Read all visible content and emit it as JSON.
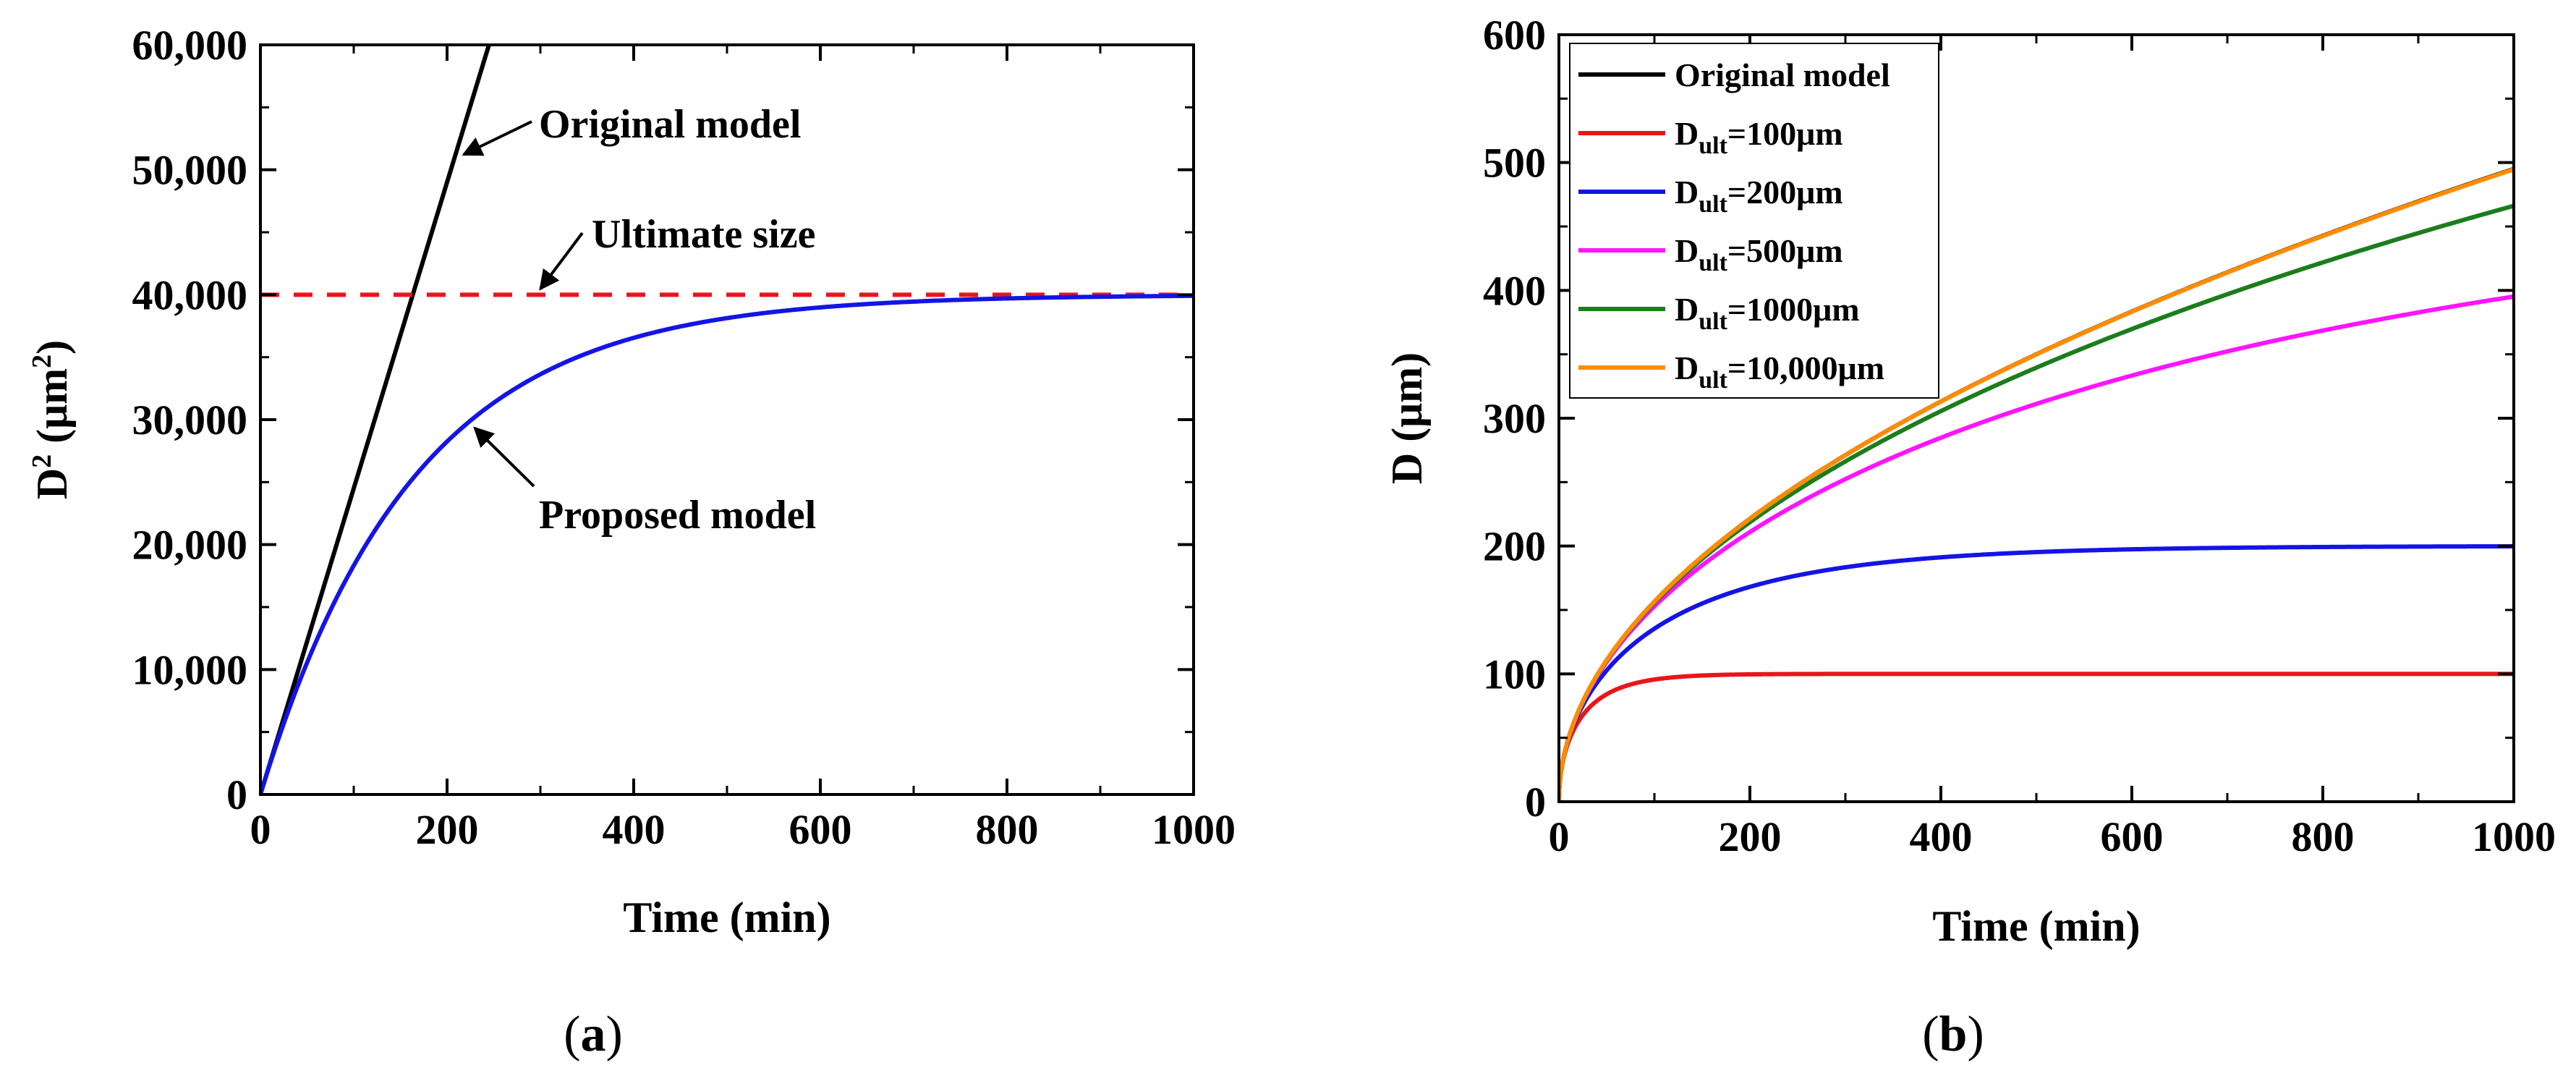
{
  "chart_data": [
    {
      "type": "line",
      "panel_label": "(a)",
      "panel_letter": "a",
      "xlabel": "Time (min)",
      "ylabel": {
        "base": "D",
        "sup1": "2",
        "mid": " (μm",
        "sup2": "2",
        "end": ")"
      },
      "xlim": [
        0,
        1000
      ],
      "ylim": [
        0,
        60000
      ],
      "x_ticks": [
        0,
        200,
        400,
        600,
        800,
        1000
      ],
      "x_tick_labels": [
        "0",
        "200",
        "400",
        "600",
        "800",
        "1000"
      ],
      "y_ticks": [
        0,
        10000,
        20000,
        30000,
        40000,
        50000,
        60000
      ],
      "y_tick_labels": [
        "0",
        "10,000",
        "20,000",
        "30,000",
        "40,000",
        "50,000",
        "60,000"
      ],
      "series": [
        {
          "name": "Original model",
          "color": "#000000",
          "style": "solid",
          "formula": "linear",
          "k": 245,
          "x_end": 245
        },
        {
          "name": "Ultimate size",
          "color": "#e8161b",
          "style": "dashed",
          "formula": "constant",
          "value": 40000
        },
        {
          "name": "Proposed model",
          "color": "#1414e6",
          "style": "solid",
          "formula": "saturating_d2",
          "ultimate": 40000,
          "k": 245
        }
      ],
      "annotations": [
        {
          "text": "Original model",
          "target_series": "Original model"
        },
        {
          "text": "Ultimate size",
          "target_series": "Ultimate size"
        },
        {
          "text": "Proposed model",
          "target_series": "Proposed model"
        }
      ]
    },
    {
      "type": "line",
      "panel_label": "(b)",
      "panel_letter": "b",
      "xlabel": "Time (min)",
      "ylabel": "D (μm)",
      "xlim": [
        0,
        1000
      ],
      "ylim": [
        0,
        600
      ],
      "x_ticks": [
        0,
        200,
        400,
        600,
        800,
        1000
      ],
      "x_tick_labels": [
        "0",
        "200",
        "400",
        "600",
        "800",
        "1000"
      ],
      "y_ticks": [
        0,
        100,
        200,
        300,
        400,
        500,
        600
      ],
      "y_tick_labels": [
        "0",
        "100",
        "200",
        "300",
        "400",
        "500",
        "600"
      ],
      "legend_position": "top-left",
      "series": [
        {
          "name": "Original model",
          "legend_main": "Original model",
          "color": "#000000",
          "formula": "sqrt",
          "k": 245
        },
        {
          "name": "Dult=100μm",
          "legend_main": "D",
          "legend_sub": "ult",
          "legend_rest": "=100μm",
          "color": "#e8161b",
          "formula": "saturating_d",
          "ultimate": 100,
          "k": 245
        },
        {
          "name": "Dult=200μm",
          "legend_main": "D",
          "legend_sub": "ult",
          "legend_rest": "=200μm",
          "color": "#1414e6",
          "formula": "saturating_d",
          "ultimate": 200,
          "k": 245
        },
        {
          "name": "Dult=500μm",
          "legend_main": "D",
          "legend_sub": "ult",
          "legend_rest": "=500μm",
          "color": "#ff14ff",
          "formula": "saturating_d",
          "ultimate": 500,
          "k": 245
        },
        {
          "name": "Dult=1000μm",
          "legend_main": "D",
          "legend_sub": "ult",
          "legend_rest": "=1000μm",
          "color": "#1b7d1b",
          "formula": "saturating_d",
          "ultimate": 1000,
          "k": 245
        },
        {
          "name": "Dult=10,000μm",
          "legend_main": "D",
          "legend_sub": "ult",
          "legend_rest": "=10,000μm",
          "color": "#ff8c00",
          "formula": "saturating_d",
          "ultimate": 10000,
          "k": 245
        }
      ]
    }
  ]
}
